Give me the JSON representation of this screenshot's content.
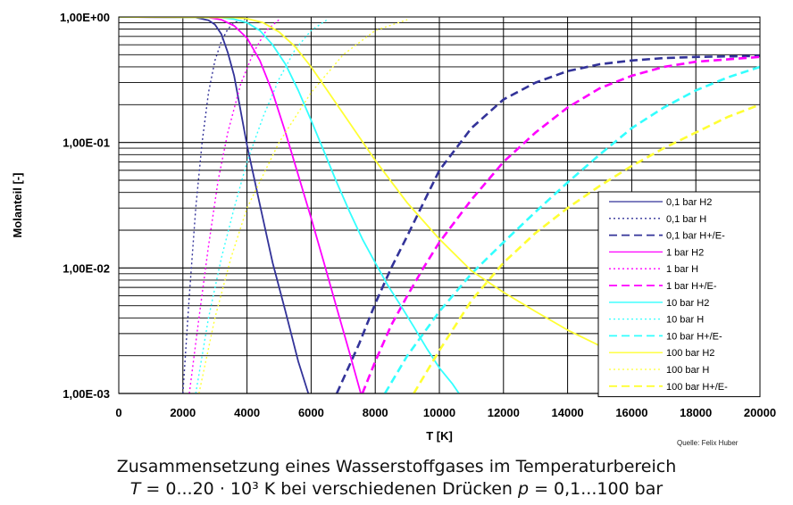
{
  "source": "Quelle: Felix Huber",
  "caption": {
    "line1": "Zusammensetzung eines Wasserstoffgases im Temperaturbereich",
    "line2_T": "T",
    "line2_mid": " = 0...20 · 10³ K bei verschiedenen Drücken ",
    "line2_p": "p",
    "line2_end": " = 0,1...100 bar"
  },
  "chart_data": {
    "type": "line",
    "xlabel": "T [K]",
    "ylabel": "Molanteil [-]",
    "xlim": [
      0,
      20000
    ],
    "ylim": [
      0.001,
      1
    ],
    "yscale": "log",
    "grid": true,
    "legend_position": "lower-right",
    "x_ticks": [
      0,
      2000,
      4000,
      6000,
      8000,
      10000,
      12000,
      14000,
      16000,
      18000,
      20000
    ],
    "x_tick_labels": [
      "0",
      "2000",
      "4000",
      "6000",
      "8000",
      "10000",
      "12000",
      "14000",
      "16000",
      "18000",
      "20000"
    ],
    "y_ticks": [
      0.001,
      0.01,
      0.1,
      1
    ],
    "y_tick_labels": [
      "1,00E-03",
      "1,00E-02",
      "1,00E-01",
      "1,00E+00"
    ],
    "series": [
      {
        "name": "0,1 bar H2",
        "color": "#333399",
        "dash": "solid",
        "x": [
          0,
          2400,
          2800,
          3000,
          3200,
          3400,
          3600,
          3800,
          4000,
          4400,
          4800,
          5200,
          5600,
          6000
        ],
        "y": [
          1,
          0.99,
          0.94,
          0.87,
          0.73,
          0.52,
          0.34,
          0.18,
          0.095,
          0.032,
          0.011,
          0.0045,
          0.0018,
          0.00085
        ]
      },
      {
        "name": "0,1 bar H",
        "color": "#333399",
        "dash": "dot",
        "x": [
          2000,
          2200,
          2400,
          2600,
          2800,
          3000,
          3200,
          3400,
          3600,
          4000
        ],
        "y": [
          0.001,
          0.006,
          0.03,
          0.1,
          0.25,
          0.45,
          0.64,
          0.8,
          0.9,
          0.97
        ]
      },
      {
        "name": "0,1 bar H+/E-",
        "color": "#333399",
        "dash": "dash",
        "x": [
          6800,
          7500,
          8000,
          8500,
          9000,
          9500,
          10000,
          11000,
          12000,
          13000,
          14000,
          15000,
          16000,
          17000,
          18000,
          20000
        ],
        "y": [
          0.001,
          0.0025,
          0.0052,
          0.01,
          0.018,
          0.033,
          0.06,
          0.13,
          0.22,
          0.3,
          0.37,
          0.42,
          0.45,
          0.47,
          0.48,
          0.49
        ]
      },
      {
        "name": "1 bar H2",
        "color": "#ff00ff",
        "dash": "solid",
        "x": [
          0,
          2800,
          3200,
          3600,
          4000,
          4400,
          4800,
          5200,
          5600,
          6000,
          6400,
          6800,
          7200,
          7600
        ],
        "y": [
          1,
          0.99,
          0.95,
          0.85,
          0.68,
          0.45,
          0.25,
          0.12,
          0.055,
          0.025,
          0.011,
          0.0048,
          0.0021,
          0.0009
        ]
      },
      {
        "name": "1 bar H",
        "color": "#ff00ff",
        "dash": "dot",
        "x": [
          2200,
          2500,
          2800,
          3100,
          3400,
          3800,
          4200,
          4600,
          5000
        ],
        "y": [
          0.001,
          0.004,
          0.015,
          0.05,
          0.12,
          0.29,
          0.52,
          0.78,
          0.95
        ]
      },
      {
        "name": "1 bar H+/E-",
        "color": "#ff00ff",
        "dash": "dash",
        "x": [
          7600,
          8000,
          8500,
          9000,
          9500,
          10000,
          11000,
          12000,
          13000,
          14000,
          15000,
          16000,
          17000,
          18000,
          20000
        ],
        "y": [
          0.001,
          0.0018,
          0.0035,
          0.006,
          0.01,
          0.016,
          0.035,
          0.07,
          0.12,
          0.19,
          0.27,
          0.34,
          0.4,
          0.44,
          0.48
        ]
      },
      {
        "name": "10 bar H2",
        "color": "#33ffff",
        "dash": "solid",
        "x": [
          0,
          3200,
          3600,
          4000,
          4400,
          4800,
          5200,
          5600,
          6000,
          6400,
          6800,
          7200,
          7600,
          8000,
          8400,
          8800,
          9200,
          9600,
          10000,
          10400,
          10800
        ],
        "y": [
          1,
          0.99,
          0.96,
          0.9,
          0.78,
          0.6,
          0.42,
          0.26,
          0.15,
          0.085,
          0.048,
          0.028,
          0.017,
          0.011,
          0.0072,
          0.005,
          0.0034,
          0.0023,
          0.0016,
          0.0012,
          0.00085
        ]
      },
      {
        "name": "10 bar H",
        "color": "#33ffff",
        "dash": "dot",
        "x": [
          2400,
          2800,
          3200,
          3600,
          4000,
          4500,
          5000,
          5500,
          6000,
          6500
        ],
        "y": [
          0.001,
          0.004,
          0.012,
          0.03,
          0.07,
          0.16,
          0.32,
          0.55,
          0.78,
          0.95
        ]
      },
      {
        "name": "10 bar H+/E-",
        "color": "#33ffff",
        "dash": "dash",
        "x": [
          8300,
          9000,
          10000,
          11000,
          12000,
          13000,
          14000,
          15000,
          16000,
          17000,
          18000,
          19000,
          20000
        ],
        "y": [
          0.001,
          0.002,
          0.0045,
          0.009,
          0.016,
          0.028,
          0.048,
          0.08,
          0.13,
          0.19,
          0.26,
          0.33,
          0.4
        ]
      },
      {
        "name": "100 bar H2",
        "color": "#ffff33",
        "dash": "solid",
        "x": [
          0,
          3600,
          4000,
          4500,
          5000,
          5500,
          6000,
          7000,
          8000,
          9000,
          10000,
          11000,
          12000,
          13000,
          14000,
          15000,
          16000
        ],
        "y": [
          1,
          0.99,
          0.97,
          0.9,
          0.76,
          0.58,
          0.4,
          0.17,
          0.072,
          0.033,
          0.017,
          0.0095,
          0.0064,
          0.0045,
          0.0032,
          0.0024,
          0.0018
        ]
      },
      {
        "name": "100 bar H",
        "color": "#ffff33",
        "dash": "dot",
        "x": [
          2500,
          3000,
          3500,
          4000,
          5000,
          6000,
          7000,
          8000,
          9000
        ],
        "y": [
          0.001,
          0.004,
          0.012,
          0.03,
          0.1,
          0.25,
          0.5,
          0.78,
          0.95
        ]
      },
      {
        "name": "100 bar H+/E-",
        "color": "#ffff33",
        "dash": "dash",
        "x": [
          9200,
          10000,
          11000,
          12000,
          13000,
          14000,
          15000,
          16000,
          17000,
          18000,
          19000,
          20000
        ],
        "y": [
          0.001,
          0.0022,
          0.0055,
          0.011,
          0.019,
          0.03,
          0.045,
          0.065,
          0.09,
          0.12,
          0.16,
          0.2
        ]
      }
    ]
  }
}
